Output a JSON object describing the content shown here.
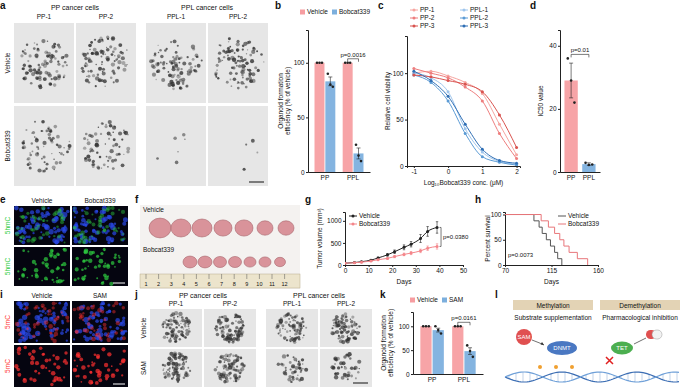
{
  "chart_data": [
    {
      "panel_label": "b",
      "type": "bar",
      "y_label": [
        "Organoid formation",
        "efficiency (% of vehicle)"
      ],
      "categories": [
        "PP",
        "PPL"
      ],
      "series": [
        {
          "name": "Vehicle",
          "color": "#f4858a",
          "values": [
            100,
            100
          ],
          "points": [
            [
              100,
              100,
              100
            ],
            [
              100,
              100,
              100
            ]
          ]
        },
        {
          "name": "Bobcat339",
          "color": "#5b9bd5",
          "values": [
            83,
            17
          ],
          "errors": [
            4,
            5
          ],
          "points": [
            [
              90,
              80,
              78
            ],
            [
              25,
              15,
              10
            ]
          ]
        }
      ],
      "ylim": [
        0,
        130
      ],
      "yticks": [
        0,
        50,
        100
      ],
      "legend": "top",
      "annotations": [
        {
          "text": "p=0.0016"
        }
      ]
    },
    {
      "panel_label": "c",
      "type": "line",
      "x_label": "Log₁₀Bobcat339 conc. (μM)",
      "y_label": "Relative cell viability",
      "x": [
        -1,
        -0.5,
        0,
        0.5,
        1,
        1.5,
        2
      ],
      "series": [
        {
          "name": "PP-1",
          "color": "#f6a5a0",
          "values": [
            100,
            102,
            97,
            90,
            78,
            45,
            12
          ]
        },
        {
          "name": "PPL-1",
          "color": "#9ec5ec",
          "values": [
            100,
            95,
            80,
            40,
            15,
            5,
            2
          ]
        },
        {
          "name": "PP-2",
          "color": "#ee7d7d",
          "values": [
            105,
            100,
            95,
            85,
            70,
            35,
            8
          ]
        },
        {
          "name": "PPL-2",
          "color": "#5b9bd5",
          "values": [
            98,
            90,
            70,
            35,
            10,
            4,
            1
          ]
        },
        {
          "name": "PP-3",
          "color": "#d9534f",
          "values": [
            98,
            96,
            92,
            88,
            80,
            55,
            20
          ]
        },
        {
          "name": "PPL-3",
          "color": "#2f6fb5",
          "values": [
            102,
            92,
            75,
            45,
            18,
            6,
            3
          ]
        }
      ],
      "xlim": [
        -1.2,
        2.1
      ],
      "xticks": [
        -1,
        0,
        1,
        2
      ],
      "ylim": [
        0,
        140
      ],
      "yticks": [
        0,
        50,
        100
      ],
      "marker": "circle",
      "legend": "top"
    },
    {
      "panel_label": "d",
      "type": "bar",
      "y_label": "IC50 value",
      "categories": [
        "PP",
        "PPL"
      ],
      "values": [
        29,
        2.5
      ],
      "errors": [
        5.5,
        0.4
      ],
      "points": [
        [
          36,
          29,
          22
        ],
        [
          2.9,
          2.2,
          2.4
        ]
      ],
      "colors": [
        "#f4858a",
        "#5b9bd5"
      ],
      "ylim": [
        0,
        45
      ],
      "yticks": [
        0,
        20,
        40
      ],
      "annotations": [
        {
          "text": "p=0.01"
        }
      ]
    },
    {
      "panel_label": "g",
      "type": "line",
      "x_label": "Days",
      "y_label": "Tumor volume (mm³)",
      "x": [
        0,
        4,
        7,
        11,
        14,
        18,
        21,
        25,
        28,
        32,
        35,
        39
      ],
      "series": [
        {
          "name": "Vehicle",
          "color": "#222222",
          "values": [
            40,
            55,
            75,
            110,
            160,
            230,
            300,
            400,
            470,
            600,
            760,
            850
          ],
          "errors": [
            5,
            8,
            10,
            15,
            20,
            30,
            40,
            55,
            60,
            90,
            110,
            130
          ]
        },
        {
          "name": "Bobcat339",
          "color": "#f4858a",
          "values": [
            40,
            50,
            65,
            90,
            120,
            150,
            190,
            240,
            270,
            320,
            380,
            420
          ],
          "errors": [
            5,
            6,
            8,
            10,
            15,
            20,
            25,
            30,
            35,
            40,
            50,
            60
          ]
        }
      ],
      "xlim": [
        0,
        50
      ],
      "xticks": [
        0,
        10,
        20,
        30,
        40,
        50
      ],
      "ylim": [
        0,
        1200
      ],
      "yticks": [
        0,
        500,
        1000
      ],
      "marker": "circle",
      "legend": "top-left",
      "annotations": [
        {
          "text": "p=0.0380"
        }
      ]
    },
    {
      "panel_label": "h",
      "type": "survival",
      "x_label": "Days",
      "y_label": "Percent survival",
      "series": [
        {
          "name": "Vehicle",
          "color": "#555555",
          "x": [
            70,
            98,
            103,
            106,
            110,
            114,
            118,
            121,
            125
          ],
          "values": [
            100,
            87.5,
            75,
            62.5,
            50,
            37.5,
            25,
            12.5,
            0
          ]
        },
        {
          "name": "Bobcat339",
          "color": "#e8767a",
          "x": [
            70,
            105,
            112,
            118,
            123,
            127,
            132,
            140,
            150
          ],
          "values": [
            100,
            87.5,
            75,
            62.5,
            50,
            37.5,
            25,
            12.5,
            0
          ]
        }
      ],
      "xlim": [
        70,
        160
      ],
      "xticks": [
        70,
        115,
        160
      ],
      "ylim": [
        0,
        105
      ],
      "yticks": [
        0,
        50,
        100
      ],
      "legend": "top-right",
      "annotations": [
        {
          "text": "p=0.0073"
        }
      ]
    },
    {
      "panel_label": "k",
      "type": "bar",
      "y_label": [
        "Organoid formation",
        "efficiency (% of vehicle)"
      ],
      "categories": [
        "PP",
        "PPL"
      ],
      "series": [
        {
          "name": "Vehicle",
          "color": "#f4858a",
          "values": [
            100,
            100
          ],
          "points": [
            [
              100,
              100,
              100
            ],
            [
              100,
              100,
              100
            ]
          ]
        },
        {
          "name": "SAM",
          "color": "#5b9bd5",
          "values": [
            92,
            48
          ],
          "errors": [
            4,
            7
          ],
          "points": [
            [
              100,
              92,
              85
            ],
            [
              60,
              48,
              36
            ]
          ]
        }
      ],
      "ylim": [
        0,
        130
      ],
      "yticks": [
        0,
        50,
        100
      ],
      "legend": "top",
      "annotations": [
        {
          "text": "p=0.0161"
        }
      ]
    }
  ],
  "images": [
    {
      "panel_label": "a",
      "groups": [
        "PP cancer cells",
        "PPL cancer cells"
      ],
      "columns": [
        "PP-1",
        "PP-2",
        "PPL-1",
        "PPL-2"
      ],
      "rows": [
        "Vehicle",
        "Bobcat339"
      ]
    },
    {
      "panel_label": "e",
      "columns": [
        "Vehicle",
        "Bobcat339"
      ],
      "rows": [
        "5hmC",
        "5hmC"
      ]
    },
    {
      "panel_label": "f",
      "rows": [
        "Vehicle",
        "Bobcat339"
      ],
      "ruler": [
        "1",
        "2",
        "3",
        "4",
        "5",
        "6",
        "7",
        "8",
        "9",
        "10",
        "11",
        "12"
      ]
    },
    {
      "panel_label": "i",
      "columns": [
        "Vehicle",
        "SAM"
      ],
      "rows": [
        "5mC",
        "5mC"
      ]
    },
    {
      "panel_label": "j",
      "groups": [
        "PP cancer cells",
        "PPL cancer cells"
      ],
      "columns": [
        "PP-1",
        "PP-2",
        "PPL-1",
        "PPL-2"
      ],
      "rows": [
        "Vehicle",
        "SAM"
      ]
    }
  ],
  "schematic": {
    "panel_label": "l",
    "headers": [
      "Methylation",
      "Demethylation"
    ],
    "captions": [
      "Substrate supplementation",
      "Pharmacological inhibition"
    ],
    "nodes": [
      "SAM",
      "DNMT",
      "TET"
    ]
  }
}
